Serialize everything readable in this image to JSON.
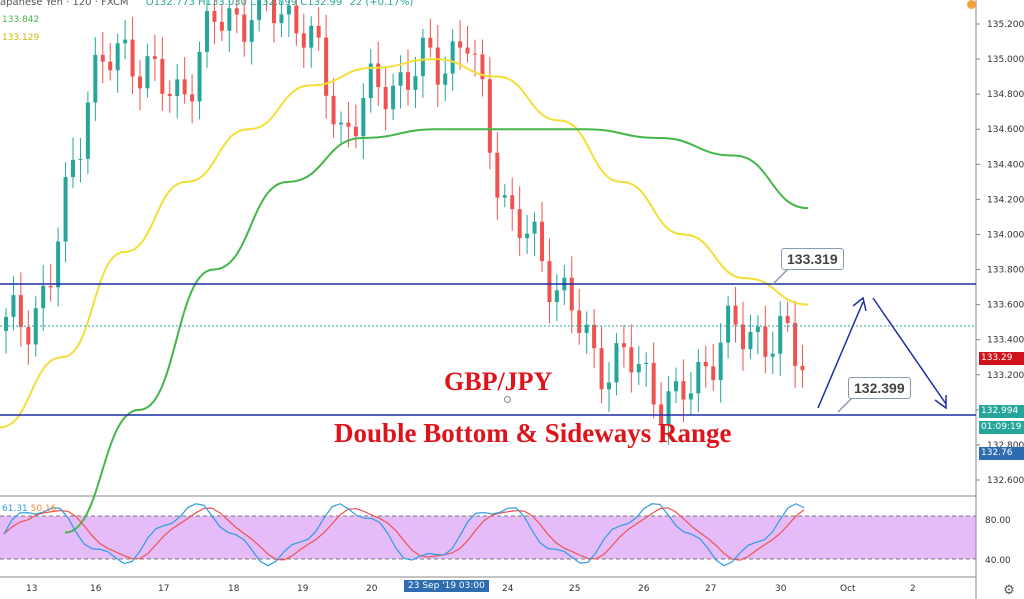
{
  "header": {
    "symbol_text": "apanese Yen · 120 · FXCM",
    "ohlc_text": "O132.773 H133.030 L132.899 C132.99",
    "change_text": "22 (+0.17%)",
    "ma_fast_value": "133.842",
    "ma_slow_value": "133.129"
  },
  "annotations": {
    "pair": "GBP/JPY",
    "title": "Double Bottom & Sideways Range",
    "resistance_label": "133.319",
    "support_label": "132.399"
  },
  "price_tags": {
    "current": "133.29",
    "support": "132.994",
    "countdown": "01:09:19",
    "low_tag": "132.76"
  },
  "oscillator": {
    "k_value": "61.31",
    "d_value": "50.16",
    "upper_band": 80,
    "lower_band": 40
  },
  "time_axis": {
    "labels": [
      "13",
      "16",
      "17",
      "18",
      "19",
      "20",
      "24",
      "25",
      "26",
      "27",
      "30",
      "Oct",
      "2"
    ],
    "cursor_label": "23 Sep '19   03:00"
  },
  "colors": {
    "bull": "#26a69a",
    "bear": "#ef5350",
    "ma_fast": "#f4df37",
    "ma_slow": "#45b649",
    "level_line": "#1c2ea8",
    "band_fill": "#e1b0f7",
    "k_line": "#2f9be4",
    "d_line": "#ef5350",
    "text_red": "#e0121c",
    "tag_current": "#d0121d",
    "tag_support": "#26a69a",
    "tag_low": "#2d6cb0"
  },
  "chart_data": {
    "type": "line",
    "title": "GBP/JPY",
    "subtitle": "Double Bottom & Sideways Range",
    "y_ticks": [
      132.6,
      132.8,
      133.0,
      133.2,
      133.4,
      133.6,
      133.8,
      134.0,
      134.2,
      134.4,
      134.6,
      134.8,
      135.0,
      135.2
    ],
    "ylim": [
      132.45,
      135.28
    ],
    "horizontal_levels": [
      133.72,
      132.99
    ],
    "series": [
      {
        "values": [
          133.45,
          133.65,
          134.9,
          135.05,
          134.75,
          135.2,
          135.3,
          135.25,
          134.6,
          134.85,
          134.95,
          135.1,
          134.1,
          133.8,
          133.3,
          133.25,
          133.0,
          133.4,
          133.45,
          133.3
        ]
      },
      {
        "values": [
          132.3,
          133.0,
          133.8,
          134.3,
          134.55,
          134.6,
          134.6,
          134.6,
          134.55,
          134.45,
          134.15
        ]
      }
    ]
  }
}
